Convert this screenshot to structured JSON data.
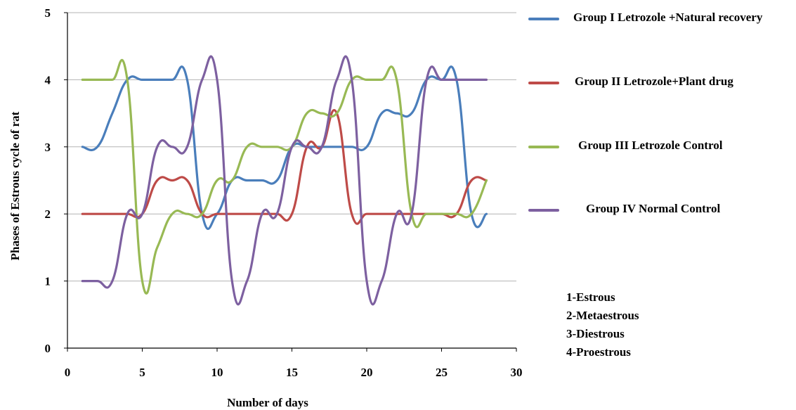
{
  "chart_data": {
    "type": "line",
    "title": "",
    "xlabel": "Number of days",
    "ylabel": "Phases of Estrous cycle of rat",
    "xlim": [
      0,
      30
    ],
    "ylim": [
      0,
      5
    ],
    "x_ticks": [
      0,
      5,
      10,
      15,
      20,
      25,
      30
    ],
    "y_ticks": [
      0,
      1,
      2,
      3,
      4,
      5
    ],
    "grid": "horizontal",
    "legend_position": "right",
    "x": [
      1,
      2,
      3,
      4,
      5,
      6,
      7,
      8,
      9,
      10,
      11,
      12,
      13,
      14,
      15,
      16,
      17,
      18,
      19,
      20,
      21,
      22,
      23,
      24,
      25,
      26,
      27,
      28
    ],
    "series": [
      {
        "name": "Group I Letrozole +Natural recovery",
        "color": "#4A7EBB",
        "values": [
          3,
          3,
          3.5,
          4,
          4,
          4,
          4,
          4,
          2,
          2,
          2.5,
          2.5,
          2.5,
          2.5,
          3,
          3,
          3,
          3,
          3,
          3,
          3.5,
          3.5,
          3.5,
          4,
          4,
          4,
          2,
          2
        ]
      },
      {
        "name": "Group II Letrozole+Plant drug",
        "color": "#BE4B48",
        "values": [
          2,
          2,
          2,
          2,
          2,
          2.5,
          2.5,
          2.5,
          2,
          2,
          2,
          2,
          2,
          2,
          2,
          3,
          3,
          3.5,
          2,
          2,
          2,
          2,
          2,
          2,
          2,
          2,
          2.5,
          2.5
        ]
      },
      {
        "name": "Group III Letrozole Control",
        "color": "#98B954",
        "values": [
          4,
          4,
          4,
          4,
          1,
          1.5,
          2,
          2,
          2,
          2.5,
          2.5,
          3,
          3,
          3,
          3,
          3.5,
          3.5,
          3.5,
          4,
          4,
          4,
          4,
          2,
          2,
          2,
          2,
          2,
          2.5
        ]
      },
      {
        "name": "Group IV Normal Control",
        "color": "#7D60A0",
        "values": [
          1,
          1,
          1,
          2,
          2,
          3,
          3,
          3,
          4,
          4,
          1,
          1,
          2,
          2,
          3,
          3,
          3,
          4,
          4,
          1,
          1,
          2,
          2,
          4,
          4,
          4,
          4,
          4
        ]
      }
    ],
    "annotations": [
      "1-Estrous",
      "2-Metaestrous",
      "3-Diestrous",
      "4-Proestrous"
    ]
  }
}
